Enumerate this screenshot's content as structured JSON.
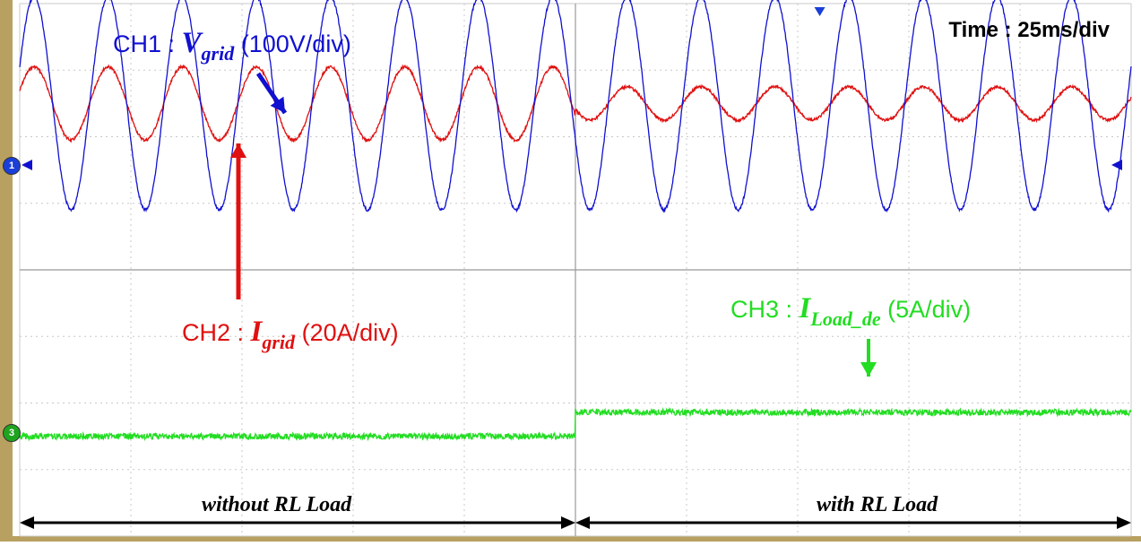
{
  "chart_data": {
    "type": "line",
    "time_per_div": "Time : 25ms/div",
    "grid": {
      "horizontal_divisions": 10,
      "vertical_divisions": 8
    },
    "x_range_ms": [
      0,
      250
    ],
    "step_time_ms": 125,
    "series": [
      {
        "name": "CH1",
        "label_prefix": "CH1 : ",
        "symbol": "V",
        "subscript": "grid",
        "scale": "(100V/div)",
        "color": "#1010d0",
        "unit": "V",
        "amplitude": 160,
        "frequency_hz": 60,
        "before_step_amplitude": 160,
        "after_step_amplitude": 160
      },
      {
        "name": "CH2",
        "label_prefix": "CH2 : ",
        "symbol": "I",
        "subscript": "grid",
        "scale": "(20A/div)",
        "color": "#e01010",
        "unit": "A",
        "before_step_amplitude": 11,
        "after_step_amplitude": 5,
        "frequency_hz": 60
      },
      {
        "name": "CH3",
        "label_prefix": "CH3 : ",
        "symbol": "I",
        "subscript": "Load_de",
        "scale": "(5A/div)",
        "color": "#22dd22",
        "unit": "A",
        "before_step_level": 0,
        "after_step_level": 1.8
      }
    ],
    "regions": [
      {
        "label": "without RL Load",
        "x_range_ms": [
          0,
          125
        ]
      },
      {
        "label": "with RL Load",
        "x_range_ms": [
          125,
          250
        ]
      }
    ],
    "markers": [
      {
        "text": "1",
        "color": "#1a3fd8"
      },
      {
        "text": "3",
        "color": "#1fa41f"
      }
    ]
  }
}
